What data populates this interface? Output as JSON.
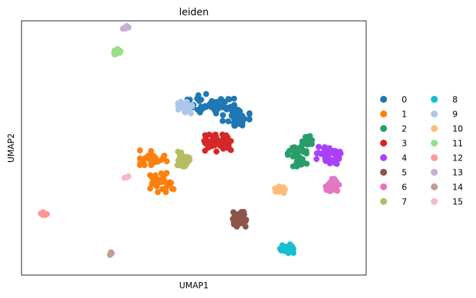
{
  "chart_data": {
    "type": "scatter",
    "title": "leiden",
    "xlabel": "UMAP1",
    "ylabel": "UMAP2",
    "grid": false,
    "ticks": false,
    "legend_position": "right, outside, 2 columns",
    "xlim": [
      0,
      100
    ],
    "ylim": [
      0,
      100
    ],
    "clusters": [
      {
        "label": "0",
        "color": "#1f77b4",
        "n": 90,
        "center": [
          58.5,
          66
        ],
        "spread": [
          6,
          3.5
        ],
        "members": [
          [
            55,
            68,
            7,
            4
          ],
          [
            62.5,
            63,
            4,
            4
          ]
        ]
      },
      {
        "label": "1",
        "color": "#ff7f0e",
        "n": 70,
        "center": [
          40,
          40
        ],
        "spread": [
          3.5,
          5
        ],
        "members": [
          [
            38,
            46,
            4,
            3
          ],
          [
            40.5,
            36,
            3.5,
            4
          ]
        ]
      },
      {
        "label": "2",
        "color": "#279e68",
        "n": 55,
        "center": [
          81,
          46
        ],
        "spread": [
          3.5,
          4
        ],
        "members": [
          [
            81,
            47,
            3.5,
            4.5
          ],
          [
            83.5,
            53,
            1.5,
            2
          ]
        ]
      },
      {
        "label": "3",
        "color": "#d62728",
        "n": 50,
        "center": [
          57,
          52
        ],
        "spread": [
          3.5,
          3
        ],
        "members": [
          [
            57,
            52,
            4,
            3.5
          ]
        ]
      },
      {
        "label": "4",
        "color": "#aa40fc",
        "n": 50,
        "center": [
          89.5,
          47
        ],
        "spread": [
          3,
          3
        ],
        "members": [
          [
            89.5,
            47,
            4,
            3.5
          ]
        ]
      },
      {
        "label": "5",
        "color": "#8c564b",
        "n": 35,
        "center": [
          63.5,
          21
        ],
        "spread": [
          2,
          3
        ],
        "members": [
          [
            63.5,
            21,
            2,
            3
          ]
        ]
      },
      {
        "label": "6",
        "color": "#e377c2",
        "n": 28,
        "center": [
          91,
          34
        ],
        "spread": [
          1.8,
          3.5
        ],
        "members": [
          [
            91,
            34,
            2,
            3.5
          ]
        ]
      },
      {
        "label": "7",
        "color": "#b5bd61",
        "n": 28,
        "center": [
          46.5,
          46
        ],
        "spread": [
          2.2,
          2.5
        ],
        "members": [
          [
            46.5,
            45.5,
            2.2,
            3
          ]
        ]
      },
      {
        "label": "8",
        "color": "#17becf",
        "n": 28,
        "center": [
          77.5,
          9
        ],
        "spread": [
          2,
          1.5
        ],
        "members": [
          [
            77.5,
            9,
            2,
            1.8
          ]
        ]
      },
      {
        "label": "9",
        "color": "#aec7e8",
        "n": 28,
        "center": [
          47.5,
          67
        ],
        "spread": [
          2,
          2.5
        ],
        "members": [
          [
            47.5,
            67,
            2.2,
            3
          ]
        ]
      },
      {
        "label": "10",
        "color": "#ffbb78",
        "n": 14,
        "center": [
          75,
          33
        ],
        "spread": [
          1.8,
          1.2
        ],
        "members": [
          [
            75,
            33,
            2,
            1.3
          ]
        ]
      },
      {
        "label": "11",
        "color": "#98df8a",
        "n": 14,
        "center": [
          27.5,
          89
        ],
        "spread": [
          1.2,
          1.2
        ],
        "members": [
          [
            27.5,
            89,
            1.2,
            1.3
          ]
        ]
      },
      {
        "label": "12",
        "color": "#ff9896",
        "n": 10,
        "center": [
          5.5,
          23
        ],
        "spread": [
          1.2,
          0.8
        ],
        "members": [
          [
            5.5,
            23,
            1.2,
            0.9
          ]
        ]
      },
      {
        "label": "13",
        "color": "#c5b0d5",
        "n": 8,
        "center": [
          30,
          99
        ],
        "spread": [
          1.2,
          0.6
        ],
        "members": [
          [
            30,
            99,
            1.2,
            0.6
          ]
        ]
      },
      {
        "label": "14",
        "color": "#c49c94",
        "n": 5,
        "center": [
          25,
          7
        ],
        "spread": [
          0.8,
          0.6
        ],
        "members": [
          [
            25,
            7,
            0.8,
            0.6
          ]
        ]
      },
      {
        "label": "15",
        "color": "#f7b6d2",
        "n": 4,
        "center": [
          30,
          38
        ],
        "spread": [
          0.6,
          0.5
        ],
        "members": [
          [
            30,
            38,
            0.6,
            0.5
          ]
        ]
      }
    ]
  }
}
